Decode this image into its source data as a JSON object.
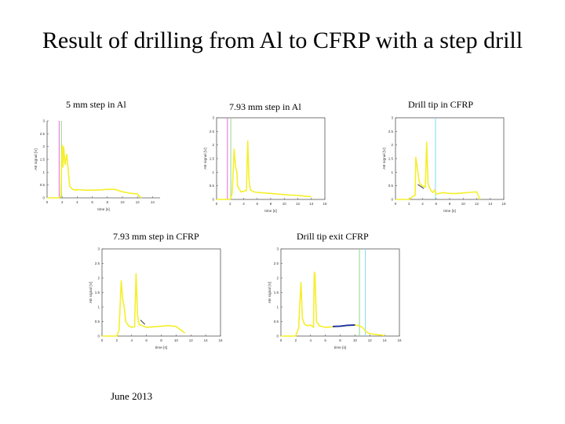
{
  "slide": {
    "title": "Result of drilling from Al to CFRP with a step drill",
    "footer": "June 2013"
  },
  "colors": {
    "signal": "#f5ef2a",
    "pink": "#e76bd8",
    "green": "#8fd68f",
    "cyan": "#7fd9f0",
    "blue": "#1d2fa6",
    "dark": "#333333"
  },
  "chart_data": [
    {
      "type": "line",
      "title": "5 mm step in Al",
      "xlabel": "time [s]",
      "ylabel": "AE signal [V]",
      "xlim": [
        0,
        15
      ],
      "ylim": [
        0,
        3
      ],
      "xticks": [
        0,
        2,
        4,
        6,
        8,
        10,
        12,
        14
      ],
      "yticks": [
        0,
        0.5,
        1,
        1.5,
        2,
        2.5,
        3
      ],
      "markers": [
        {
          "x": 1.6,
          "color": "pink"
        },
        {
          "x": 1.9,
          "color": "green"
        }
      ],
      "series": [
        {
          "x": [
            0,
            1.5,
            1.8,
            2.0,
            2.1,
            2.2,
            2.4,
            2.6,
            2.8,
            3.0,
            3.4,
            3.8,
            4.2,
            5,
            6,
            7,
            8,
            9,
            10,
            11,
            12,
            12.2,
            12.4,
            12.5
          ],
          "y": [
            0,
            0,
            0.05,
            2.05,
            1.2,
            2.0,
            1.3,
            1.7,
            1.1,
            0.45,
            0.33,
            0.3,
            0.32,
            0.3,
            0.3,
            0.31,
            0.33,
            0.33,
            0.24,
            0.18,
            0.15,
            0.08,
            0.03,
            0
          ]
        }
      ]
    },
    {
      "type": "line",
      "title": "7.93 mm step in Al",
      "xlabel": "time [s]",
      "ylabel": "AE signal [V]",
      "xlim": [
        0,
        16
      ],
      "ylim": [
        0,
        3
      ],
      "xticks": [
        0,
        2,
        4,
        6,
        8,
        10,
        12,
        14,
        16
      ],
      "yticks": [
        0,
        0.5,
        1,
        1.5,
        2,
        2.5,
        3
      ],
      "markers": [
        {
          "x": 1.6,
          "color": "pink"
        },
        {
          "x": 2.1,
          "color": "green"
        }
      ],
      "series": [
        {
          "x": [
            0,
            2.0,
            2.3,
            2.6,
            2.8,
            3.0,
            3.1,
            3.3,
            3.6,
            4.4,
            4.6,
            4.8,
            5.0,
            5.5,
            6,
            7,
            8,
            9,
            10,
            11,
            12,
            13,
            14
          ],
          "y": [
            0,
            0,
            0.2,
            1.85,
            1.2,
            1.0,
            0.5,
            0.4,
            0.28,
            0.32,
            2.15,
            0.7,
            0.35,
            0.28,
            0.26,
            0.24,
            0.22,
            0.2,
            0.18,
            0.16,
            0.15,
            0.12,
            0.1
          ]
        }
      ]
    },
    {
      "type": "line",
      "title": "Drill tip in CFRP",
      "xlabel": "time [s]",
      "ylabel": "AE signal [V]",
      "xlim": [
        0,
        16
      ],
      "ylim": [
        0,
        3
      ],
      "xticks": [
        0,
        2,
        4,
        6,
        8,
        10,
        12,
        14,
        16
      ],
      "yticks": [
        0,
        0.5,
        1,
        1.5,
        2,
        2.5,
        3
      ],
      "markers": [
        {
          "x": 5.9,
          "color": "cyan"
        }
      ],
      "series": [
        {
          "x": [
            0,
            2.0,
            2.5,
            2.9,
            3.0,
            3.2,
            3.5,
            3.7,
            4.0,
            4.4,
            4.6,
            4.8,
            5.0,
            5.2,
            5.5,
            5.8,
            6.0,
            7,
            8,
            9,
            10,
            11,
            12,
            12.3,
            12.5
          ],
          "y": [
            0,
            0,
            0.1,
            0.15,
            1.55,
            1.2,
            0.65,
            0.55,
            0.5,
            0.45,
            2.1,
            0.6,
            0.45,
            0.35,
            0.25,
            0.35,
            0.2,
            0.25,
            0.22,
            0.22,
            0.24,
            0.26,
            0.28,
            0.1,
            0
          ]
        }
      ]
    },
    {
      "type": "line",
      "title": "7.93 mm step in CFRP",
      "xlabel": "time [s]",
      "ylabel": "AE signal [V]",
      "xlim": [
        0,
        16
      ],
      "ylim": [
        0,
        3
      ],
      "xticks": [
        0,
        2,
        4,
        6,
        8,
        10,
        12,
        14,
        16
      ],
      "yticks": [
        0,
        0.5,
        1,
        1.5,
        2,
        2.5,
        3
      ],
      "markers": [],
      "series": [
        {
          "x": [
            0,
            2.0,
            2.3,
            2.6,
            2.8,
            3.0,
            3.2,
            3.6,
            4.0,
            4.4,
            4.6,
            4.8,
            5.0,
            5.5,
            6,
            7,
            8,
            9,
            10,
            10.8,
            11.2
          ],
          "y": [
            0,
            0,
            0.2,
            1.9,
            1.25,
            1.0,
            0.5,
            0.35,
            0.3,
            0.32,
            2.15,
            0.7,
            0.4,
            0.35,
            0.3,
            0.32,
            0.34,
            0.36,
            0.33,
            0.18,
            0.1
          ]
        }
      ]
    },
    {
      "type": "line",
      "title": "Drill tip exit CFRP",
      "xlabel": "time [s]",
      "ylabel": "AE signal [V]",
      "xlim": [
        0,
        16
      ],
      "ylim": [
        0,
        3
      ],
      "xticks": [
        0,
        2,
        4,
        6,
        8,
        10,
        12,
        14,
        16
      ],
      "yticks": [
        0,
        0.5,
        1,
        1.5,
        2,
        2.5,
        3
      ],
      "markers": [
        {
          "x": 10.6,
          "color": "green"
        },
        {
          "x": 11.4,
          "color": "cyan"
        }
      ],
      "series": [
        {
          "x": [
            0,
            2.0,
            2.4,
            2.7,
            2.9,
            3.2,
            3.6,
            4.0,
            4.4,
            4.5,
            4.6,
            4.8,
            5.2,
            6,
            7,
            8,
            9,
            10,
            10.5,
            11,
            11.5,
            12,
            13,
            14
          ],
          "y": [
            0,
            0,
            0.3,
            1.85,
            0.6,
            0.4,
            0.35,
            0.38,
            0.3,
            2.2,
            2.1,
            0.5,
            0.35,
            0.3,
            0.32,
            0.34,
            0.36,
            0.38,
            0.36,
            0.3,
            0.15,
            0.08,
            0.05,
            0.02
          ]
        }
      ]
    }
  ]
}
